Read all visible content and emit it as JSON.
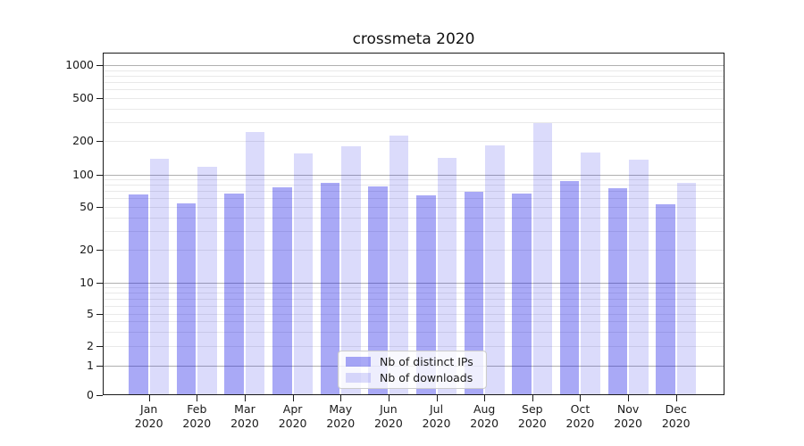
{
  "chart_data": {
    "type": "bar",
    "title": "crossmeta 2020",
    "categories": [
      "Jan",
      "Feb",
      "Mar",
      "Apr",
      "May",
      "Jun",
      "Jul",
      "Aug",
      "Sep",
      "Oct",
      "Nov",
      "Dec"
    ],
    "year_label": "2020",
    "series": [
      {
        "name": "Nb of distinct IPs",
        "color": "rgba(10,10,230,0.35)",
        "values": [
          65,
          54,
          66,
          76,
          84,
          78,
          64,
          69,
          66,
          87,
          75,
          53
        ]
      },
      {
        "name": "Nb of downloads",
        "color": "rgba(10,10,230,0.145)",
        "values": [
          138,
          118,
          240,
          154,
          178,
          225,
          140,
          183,
          292,
          158,
          136,
          84
        ]
      }
    ],
    "yscale": "symlog",
    "yticks": [
      0,
      1,
      2,
      5,
      10,
      20,
      50,
      100,
      200,
      500,
      1000
    ],
    "ylim": [
      0,
      1300
    ],
    "grid": true,
    "legend_position": "lower-center",
    "colors": {
      "major_gridline": "#b0b0b0",
      "minor_gridline": "#e9e9e9",
      "spine": "#1a1a1a",
      "text": "#1a1a1a"
    }
  }
}
